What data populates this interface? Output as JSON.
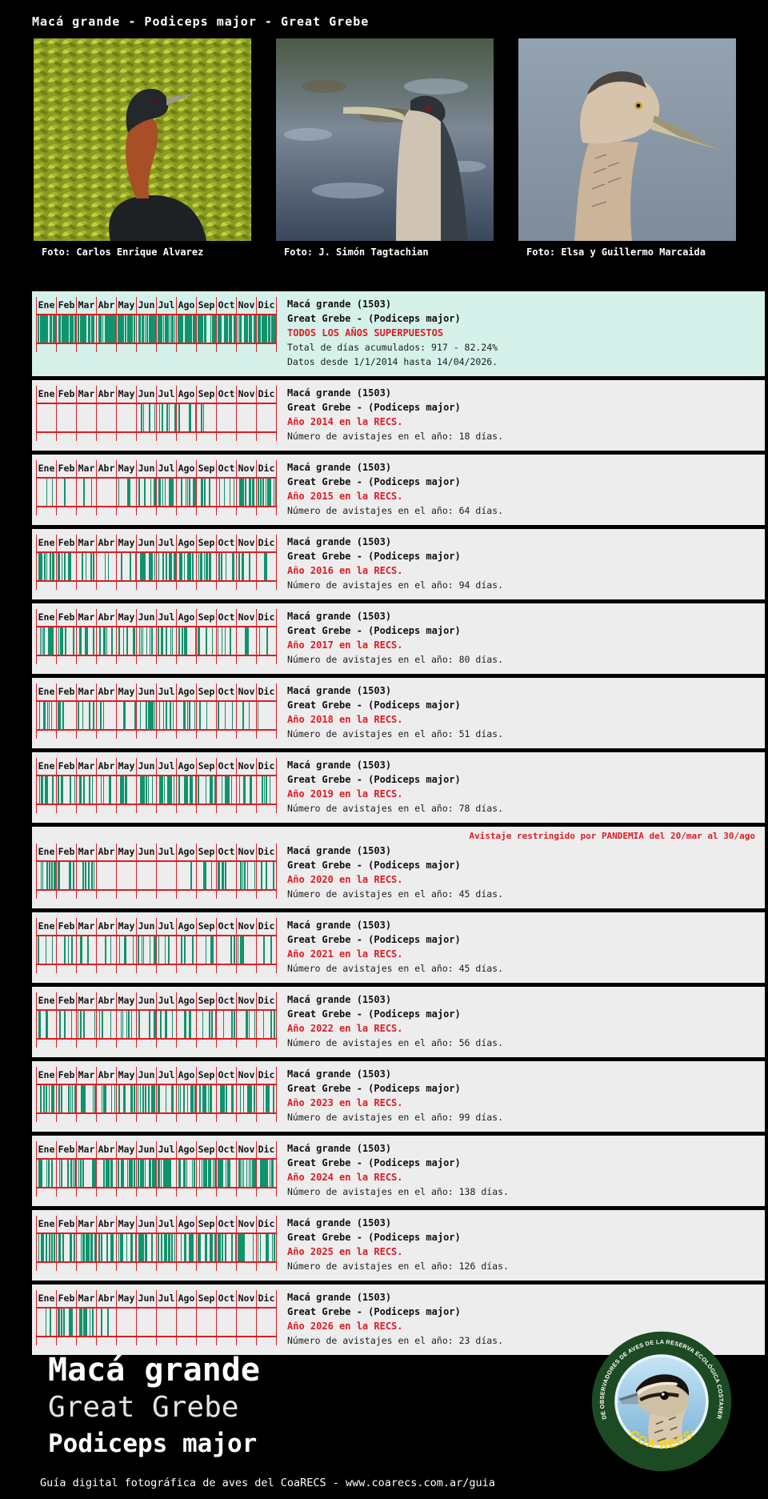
{
  "page_title": "Macá grande - Podiceps major - Great Grebe",
  "photos": [
    {
      "credit": "Foto: Carlos Enrique Alvarez"
    },
    {
      "credit": "Foto: J. Simón Tagtachian"
    },
    {
      "credit": "Foto: Elsa y Guillermo Marcaida"
    }
  ],
  "species": {
    "name_line": "Macá grande (1503)",
    "sci_line": "Great Grebe - (Podiceps major)"
  },
  "chart_data": {
    "type": "barcode-calendar",
    "unit": "approximate days with sightings per month, one green bar per day",
    "categories": [
      "Ene",
      "Feb",
      "Mar",
      "Abr",
      "May",
      "Jun",
      "Jul",
      "Ago",
      "Sep",
      "Oct",
      "Nov",
      "Dic"
    ],
    "blocks": [
      {
        "id": "all-years",
        "highlight": true,
        "period_label": "TODOS LOS AÑOS SUPERPUESTOS",
        "stat_line": "Total de días acumulados: 917 - 82.24%",
        "range_line": "Datos desde 1/1/2014 hasta 14/04/2026.",
        "total_days": 917,
        "percent": 82.24,
        "monthly_counts": [
          85,
          78,
          70,
          45,
          55,
          88,
          92,
          90,
          85,
          80,
          72,
          77
        ]
      },
      {
        "id": "2014",
        "period_label": "Año 2014 en la RECS.",
        "stat_line": "Número de avistajes en el año: 18 días.",
        "total_days": 18,
        "monthly_counts": [
          0,
          0,
          0,
          0,
          0,
          5,
          6,
          4,
          3,
          0,
          0,
          0
        ]
      },
      {
        "id": "2015",
        "period_label": "Año 2015 en la RECS.",
        "stat_line": "Número de avistajes en el año: 64 días.",
        "total_days": 64,
        "monthly_counts": [
          3,
          1,
          2,
          0,
          3,
          7,
          9,
          7,
          5,
          5,
          10,
          12
        ]
      },
      {
        "id": "2016",
        "period_label": "Año 2016 en la RECS.",
        "stat_line": "Número de avistajes en el año: 94 días.",
        "total_days": 94,
        "monthly_counts": [
          12,
          9,
          8,
          3,
          4,
          10,
          11,
          12,
          9,
          7,
          5,
          4
        ]
      },
      {
        "id": "2017",
        "period_label": "Año 2017 en la RECS.",
        "stat_line": "Número de avistajes en el año: 80 días.",
        "total_days": 80,
        "monthly_counts": [
          11,
          10,
          9,
          5,
          6,
          9,
          8,
          7,
          6,
          4,
          3,
          2
        ]
      },
      {
        "id": "2018",
        "period_label": "Año 2018 en la RECS.",
        "stat_line": "Número de avistajes en el año: 51 días.",
        "total_days": 51,
        "monthly_counts": [
          6,
          5,
          4,
          2,
          3,
          7,
          8,
          6,
          4,
          3,
          2,
          1
        ]
      },
      {
        "id": "2019",
        "period_label": "Año 2019 en la RECS.",
        "stat_line": "Número de avistajes en el año: 78 días.",
        "total_days": 78,
        "monthly_counts": [
          7,
          6,
          5,
          4,
          5,
          8,
          9,
          9,
          8,
          7,
          6,
          4
        ]
      },
      {
        "id": "2020",
        "period_label": "Año 2020 en la RECS.",
        "stat_line": "Número de avistajes en el año: 45 días.",
        "total_days": 45,
        "note": "Avistaje restringido por PANDEMIA del 20/mar al 30/ago",
        "monthly_counts": [
          9,
          8,
          6,
          0,
          0,
          0,
          0,
          1,
          5,
          6,
          6,
          4
        ]
      },
      {
        "id": "2021",
        "period_label": "Año 2021 en la RECS.",
        "stat_line": "Número de avistajes en el año: 45 días.",
        "total_days": 45,
        "monthly_counts": [
          4,
          3,
          3,
          2,
          5,
          6,
          5,
          4,
          4,
          3,
          4,
          2
        ]
      },
      {
        "id": "2022",
        "period_label": "Año 2022 en la RECS.",
        "stat_line": "Número de avistajes en el año: 56 días.",
        "total_days": 56,
        "monthly_counts": [
          5,
          4,
          4,
          3,
          6,
          7,
          6,
          5,
          5,
          4,
          4,
          3
        ]
      },
      {
        "id": "2023",
        "period_label": "Año 2023 en la RECS.",
        "stat_line": "Número de avistajes en el año: 99 días.",
        "total_days": 99,
        "monthly_counts": [
          9,
          8,
          8,
          7,
          8,
          9,
          10,
          9,
          9,
          8,
          7,
          7
        ]
      },
      {
        "id": "2024",
        "period_label": "Año 2024 en la RECS.",
        "stat_line": "Número de avistajes en el año: 138 días.",
        "total_days": 138,
        "monthly_counts": [
          10,
          9,
          9,
          8,
          12,
          13,
          14,
          13,
          13,
          13,
          12,
          12
        ]
      },
      {
        "id": "2025",
        "period_label": "Año 2025 en la RECS.",
        "stat_line": "Número de avistajes en el año: 126 días.",
        "total_days": 126,
        "monthly_counts": [
          12,
          11,
          10,
          9,
          10,
          11,
          12,
          11,
          11,
          10,
          10,
          9
        ]
      },
      {
        "id": "2026",
        "period_label": "Año 2026 en la RECS.",
        "stat_line": "Número de avistajes en el año: 23 días.",
        "total_days": 23,
        "monthly_counts": [
          3,
          9,
          8,
          3,
          0,
          0,
          0,
          0,
          0,
          0,
          0,
          0
        ]
      }
    ]
  },
  "bottom": {
    "title": "Macá grande",
    "subtitle": "Great Grebe",
    "sci_name": "Podiceps major"
  },
  "logo": {
    "ring_text": "CLUB DE OBSERVADORES DE AVES DE LA RESERVA ECOLÓGICA COSTANERA SUR",
    "bottom_text": "·COA RECS·"
  },
  "footer": {
    "text": "Guía digital fotográfica de aves del CoaRECS - www.coarecs.com.ar/guia"
  },
  "colors": {
    "accent_red": "#e01b24",
    "bar_green": "#0f936d",
    "block_bg": "#ededed",
    "highlight_bg": "#d5f1ea",
    "page_bg": "#000000",
    "logo_ring_green": "#1c4a22",
    "logo_yellow": "#ffd400"
  }
}
